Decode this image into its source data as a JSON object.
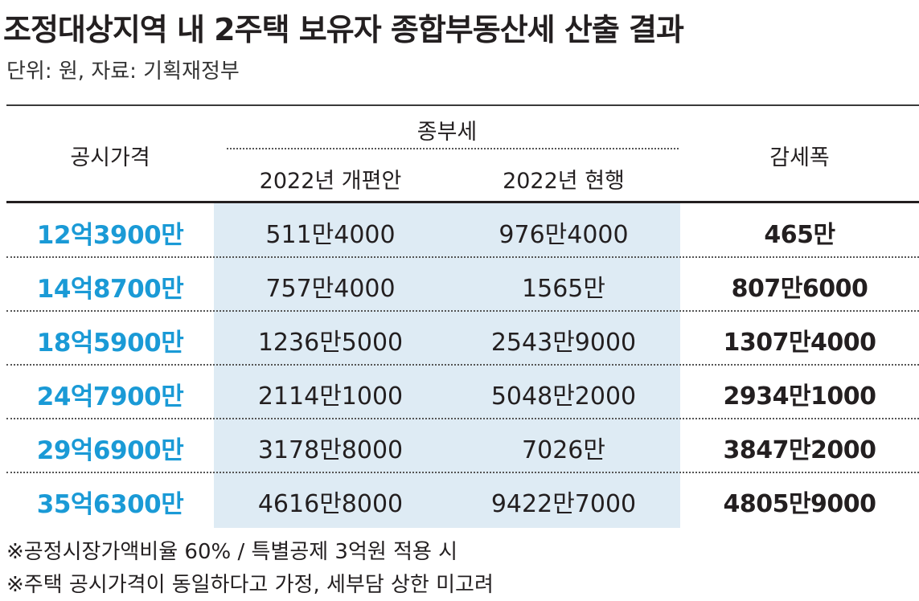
{
  "title": "조정대상지역 내 2주택 보유자 종합부동산세 산출 결과",
  "subtitle": "단위: 원, 자료: 기획재정부",
  "table": {
    "headers": {
      "price": "공시가격",
      "group": "종부세",
      "reform": "2022년 개편안",
      "current": "2022년 현행",
      "diff": "감세폭"
    },
    "rows": [
      {
        "price": "12억3900만",
        "reform": "511만4000",
        "current": "976만4000",
        "diff": "465만"
      },
      {
        "price": "14억8700만",
        "reform": "757만4000",
        "current": "1565만",
        "diff": "807만6000"
      },
      {
        "price": "18억5900만",
        "reform": "1236만5000",
        "current": "2543만9000",
        "diff": "1307만4000"
      },
      {
        "price": "24억7900만",
        "reform": "2114만1000",
        "current": "5048만2000",
        "diff": "2934만1000"
      },
      {
        "price": "29억6900만",
        "reform": "3178만8000",
        "current": "7026만",
        "diff": "3847만2000"
      },
      {
        "price": "35억6300만",
        "reform": "4616만8000",
        "current": "9422만7000",
        "diff": "4805만9000"
      }
    ]
  },
  "notes": [
    "※공정시장가액비율 60% / 특별공제 3억원 적용 시",
    "※주택 공시가격이 동일하다고 가정, 세부담 상한 미고려"
  ],
  "colors": {
    "price_text": "#1a9ad6",
    "band": "#deebf4",
    "text": "#231f20"
  },
  "chart_data": {
    "type": "table",
    "title": "조정대상지역 내 2주택 보유자 종합부동산세 산출 결과",
    "subtitle": "단위: 원, 자료: 기획재정부",
    "columns": [
      "공시가격",
      "2022년 개편안",
      "2022년 현행",
      "감세폭"
    ],
    "column_group": {
      "종부세": [
        "2022년 개편안",
        "2022년 현행"
      ]
    },
    "rows": [
      [
        "12억3900만",
        "511만4000",
        "976만4000",
        "465만"
      ],
      [
        "14억8700만",
        "757만4000",
        "1565만",
        "807만6000"
      ],
      [
        "18억5900만",
        "1236만5000",
        "2543만9000",
        "1307만4000"
      ],
      [
        "24억7900만",
        "2114만1000",
        "5048만2000",
        "2934만1000"
      ],
      [
        "29억6900만",
        "3178만8000",
        "7026만",
        "3847만2000"
      ],
      [
        "35억6300만",
        "4616만8000",
        "9422만7000",
        "4805만9000"
      ]
    ]
  }
}
